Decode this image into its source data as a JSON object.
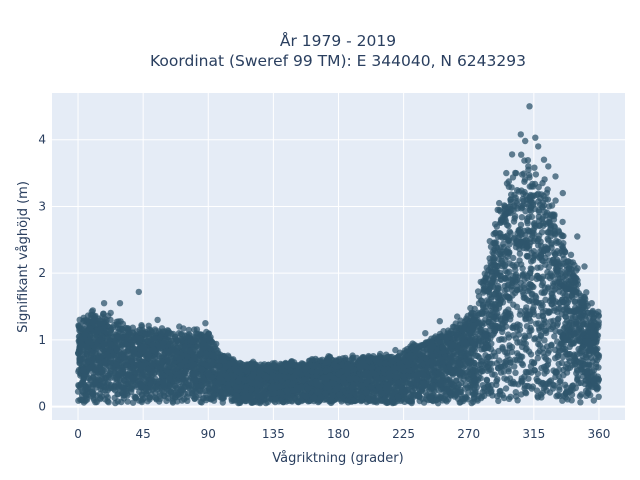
{
  "chart_data": {
    "type": "scatter",
    "title_line1": "År 1979 - 2019",
    "title_line2": "Koordinat (Sweref 99 TM): E 344040, N 6243293",
    "xlabel": "Vågriktning (grader)",
    "ylabel": "Signifikant våghöjd (m)",
    "xlim": [
      -18,
      378
    ],
    "ylim": [
      -0.2,
      4.7
    ],
    "xticks": [
      0,
      45,
      90,
      135,
      180,
      225,
      270,
      315,
      360
    ],
    "xtick_labels": [
      "0",
      "45",
      "90",
      "135",
      "180",
      "225",
      "270",
      "315",
      "360"
    ],
    "yticks": [
      0,
      1,
      2,
      3,
      4
    ],
    "ytick_labels": [
      "0",
      "1",
      "2",
      "3",
      "4"
    ],
    "grid": true,
    "marker_color": "#2f566c",
    "plot_bg": "#e5ecf6",
    "upper_envelope": {
      "x": [
        0,
        10,
        20,
        30,
        45,
        60,
        75,
        90,
        100,
        110,
        135,
        160,
        180,
        200,
        225,
        240,
        255,
        265,
        275,
        285,
        295,
        305,
        315,
        325,
        335,
        345,
        352,
        360
      ],
      "y": [
        1.3,
        1.45,
        1.4,
        1.25,
        1.2,
        1.15,
        1.15,
        1.1,
        0.8,
        0.65,
        0.65,
        0.7,
        0.75,
        0.75,
        0.85,
        1.0,
        1.15,
        1.3,
        1.6,
        2.5,
        3.3,
        3.6,
        3.7,
        3.3,
        2.8,
        2.0,
        1.6,
        1.4
      ]
    },
    "outliers": [
      {
        "x": 312,
        "y": 4.5
      },
      {
        "x": 306,
        "y": 4.08
      },
      {
        "x": 309,
        "y": 3.98
      },
      {
        "x": 316,
        "y": 4.03
      },
      {
        "x": 318,
        "y": 3.9
      },
      {
        "x": 300,
        "y": 3.78
      },
      {
        "x": 322,
        "y": 3.7
      },
      {
        "x": 330,
        "y": 3.45
      },
      {
        "x": 335,
        "y": 3.2
      },
      {
        "x": 42,
        "y": 1.72
      },
      {
        "x": 18,
        "y": 1.55
      },
      {
        "x": 29,
        "y": 1.55
      },
      {
        "x": 88,
        "y": 1.25
      },
      {
        "x": 55,
        "y": 1.3
      },
      {
        "x": 70,
        "y": 1.2
      },
      {
        "x": 240,
        "y": 1.1
      },
      {
        "x": 250,
        "y": 1.28
      },
      {
        "x": 262,
        "y": 1.35
      },
      {
        "x": 355,
        "y": 1.55
      },
      {
        "x": 345,
        "y": 2.55
      },
      {
        "x": 350,
        "y": 2.1
      },
      {
        "x": 290,
        "y": 2.95
      },
      {
        "x": 296,
        "y": 3.5
      },
      {
        "x": 325,
        "y": 3.6
      }
    ]
  }
}
